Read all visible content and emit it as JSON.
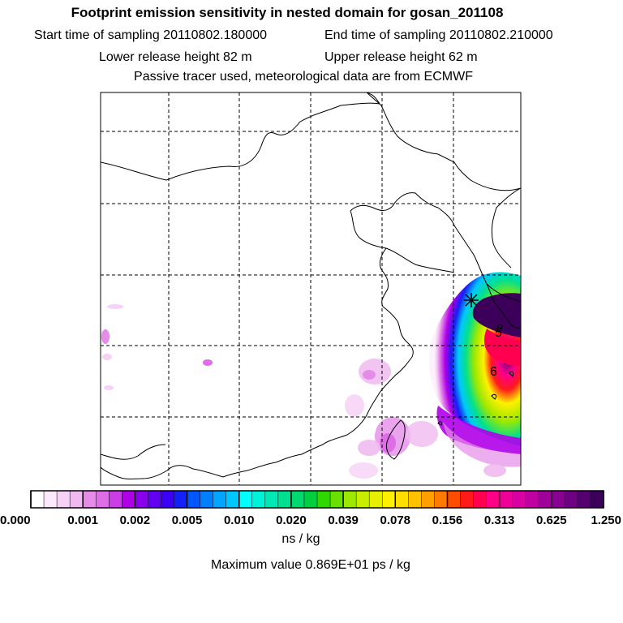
{
  "header": {
    "title": "Footprint emission sensitivity in nested domain for gosan_201108",
    "start_time": "Start time of sampling 20110802.180000",
    "end_time": "End time of sampling 20110802.210000",
    "lower_height": "Lower release height   82 m",
    "upper_height": "Upper release height   62 m",
    "note": "Passive tracer used, meteorological data are from ECMWF"
  },
  "map": {
    "labels": [
      {
        "text": "5"
      },
      {
        "text": "6"
      }
    ],
    "station_marker": "gosan-station-marker"
  },
  "colorbar": {
    "tick_labels": [
      "0.000",
      "0.001",
      "0.002",
      "0.005",
      "0.010",
      "0.020",
      "0.039",
      "0.078",
      "0.156",
      "0.313",
      "0.625",
      "1.250"
    ],
    "unit": "ns / kg",
    "colors": [
      "#ffffff",
      "#fbe8fb",
      "#f6d2f6",
      "#f0baf0",
      "#e58ce8",
      "#dd6ee5",
      "#cc3ee5",
      "#b000e8",
      "#8a00ee",
      "#6200f2",
      "#3c00f6",
      "#1420f8",
      "#0056ff",
      "#0080ff",
      "#00a6ff",
      "#00c8ff",
      "#00ffff",
      "#00f2d8",
      "#00e8b4",
      "#00e090",
      "#00d870",
      "#00d040",
      "#30d800",
      "#6ae000",
      "#9ce800",
      "#c8ee00",
      "#e6f000",
      "#fff000",
      "#ffde00",
      "#ffc200",
      "#ffa000",
      "#ff7a00",
      "#ff4c00",
      "#ff1a1a",
      "#ff0050",
      "#ff0088",
      "#ee0098",
      "#d800a0",
      "#c000a0",
      "#a0009a",
      "#880090",
      "#6e0082",
      "#540070",
      "#3c005a"
    ]
  },
  "footer": {
    "max_value": "Maximum value  0.869E+01 ps / kg"
  }
}
